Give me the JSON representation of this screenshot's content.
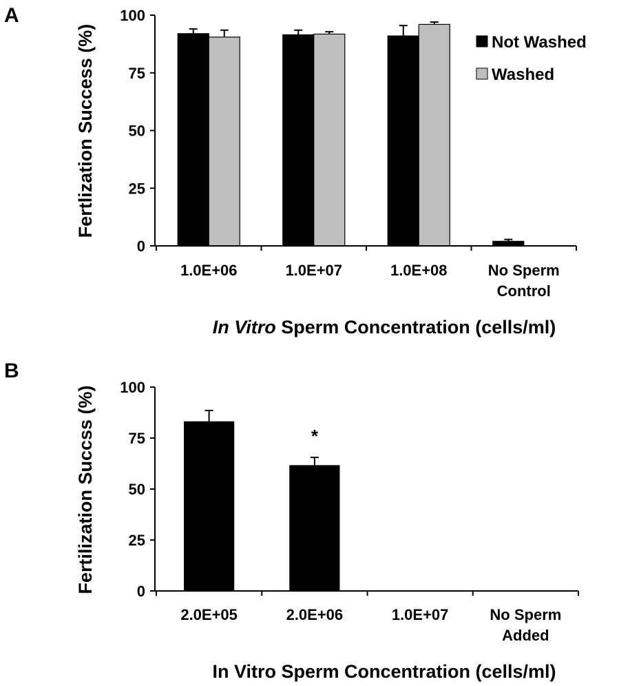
{
  "chart_data": [
    {
      "type": "bar",
      "panel_label": "A",
      "categories": [
        "1.0E+06",
        "1.0E+07",
        "1.0E+08",
        "No Sperm Control"
      ],
      "category_label_lines": [
        [
          "1.0E+06"
        ],
        [
          "1.0E+07"
        ],
        [
          "1.0E+08"
        ],
        [
          "No Sperm",
          "Control"
        ]
      ],
      "series": [
        {
          "name": "Not Washed",
          "color": "#000000",
          "values": [
            92,
            91.5,
            91,
            2
          ],
          "errors": [
            2,
            2,
            4.5,
            0.8
          ]
        },
        {
          "name": "Washed",
          "color": "#bfbfbf",
          "values": [
            90.5,
            91.8,
            96,
            null
          ],
          "errors": [
            3,
            1,
            1,
            null
          ]
        }
      ],
      "xlabel_italic": "In Vitro",
      "xlabel_rest": " Sperm Concentration (cells/ml)",
      "ylabel": "Fertlization Success (%)",
      "ylim": [
        0,
        100
      ],
      "yticks": [
        "0",
        "25",
        "50",
        "75",
        "100"
      ],
      "legend_position": "top-right",
      "grid": false
    },
    {
      "type": "bar",
      "panel_label": "B",
      "categories": [
        "2.0E+05",
        "2.0E+06",
        "1.0E+07",
        "No Sperm Added"
      ],
      "category_label_lines": [
        [
          "2.0E+05"
        ],
        [
          "2.0E+06"
        ],
        [
          "1.0E+07"
        ],
        [
          "No Sperm",
          "Added"
        ]
      ],
      "series": [
        {
          "color": "#000000",
          "values": [
            83,
            61.5,
            0,
            0
          ],
          "errors": [
            5.5,
            4,
            0,
            0
          ]
        }
      ],
      "annotations": [
        {
          "category": "2.0E+06",
          "text": "*"
        }
      ],
      "xlabel": "In Vitro Sperm Concentration (cells/ml)",
      "ylabel": "Fertilization Succss (%)",
      "ylim": [
        0,
        100
      ],
      "yticks": [
        "0",
        "25",
        "50",
        "75",
        "100"
      ],
      "grid": false
    }
  ]
}
